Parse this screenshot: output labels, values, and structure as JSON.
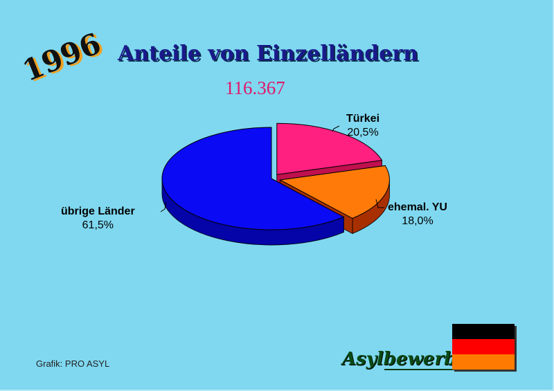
{
  "header": {
    "year": "1996",
    "title": "Anteile von Einzelländern",
    "total": "116.367"
  },
  "chart_data": {
    "type": "pie",
    "title": "Anteile von Einzelländern",
    "total": "116.367",
    "slices": [
      {
        "name": "Türkei",
        "value": 20.5,
        "label": "20,5%",
        "color": "#ff2080",
        "side": "#c0104e"
      },
      {
        "name": "ehemal. YU",
        "value": 18.0,
        "label": "18,0%",
        "color": "#ff7a08",
        "side": "#a83000"
      },
      {
        "name": "übrige Länder",
        "value": 61.5,
        "label": "61,5%",
        "color": "#0a0af5",
        "side": "#0404a8"
      }
    ],
    "legend": "none"
  },
  "footer": {
    "credit": "Grafik: PRO ASYL",
    "brand": "Asylbewerber"
  },
  "flag": {
    "stripes": [
      "#000000",
      "#ff0000",
      "#ff7a00"
    ]
  }
}
